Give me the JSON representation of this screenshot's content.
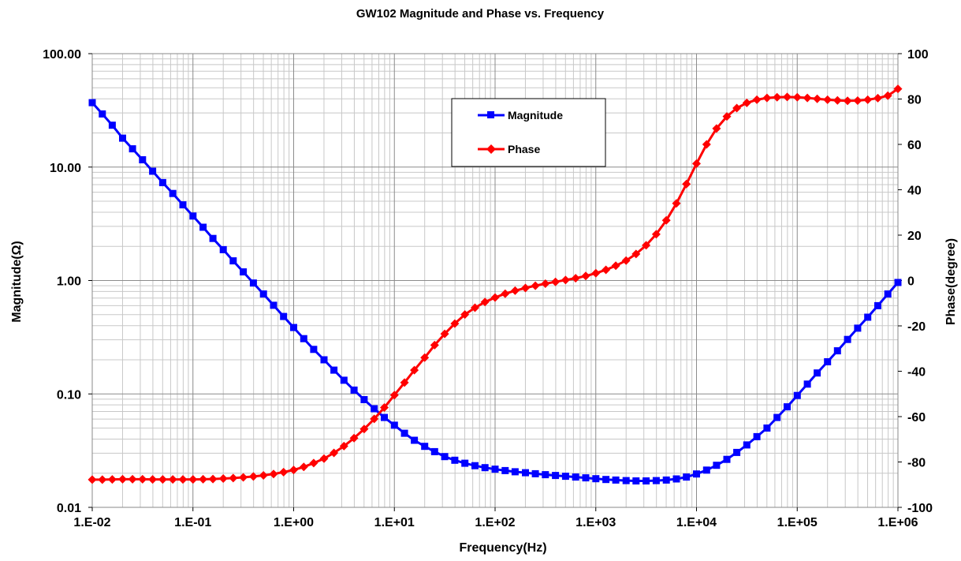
{
  "chart_data": {
    "type": "line",
    "title": "GW102 Magnitude and Phase vs. Frequency",
    "xlabel": "Frequency(Hz)",
    "ylabel_left": "Magnitude(Ω)",
    "ylabel_right": "Phase(degree)",
    "x_scale": "log",
    "y_left_scale": "log",
    "xlim": [
      0.01,
      1000000
    ],
    "ylim_left": [
      0.01,
      100
    ],
    "ylim_right": [
      -100,
      100
    ],
    "x_tick_labels": [
      "1.E-02",
      "1.E-01",
      "1.E+00",
      "1.E+01",
      "1.E+02",
      "1.E+03",
      "1.E+04",
      "1.E+05",
      "1.E+06"
    ],
    "y_left_tick_labels": [
      "0.01",
      "0.10",
      "1.00",
      "10.00",
      "100.00"
    ],
    "y_right_tick_labels": [
      "-100",
      "-80",
      "-60",
      "-40",
      "-20",
      "0",
      "20",
      "40",
      "60",
      "80",
      "100"
    ],
    "grid": true,
    "legend_position": "top-center",
    "x": [
      0.01,
      0.0126,
      0.0158,
      0.02,
      0.0251,
      0.0316,
      0.0398,
      0.0501,
      0.0631,
      0.0794,
      0.1,
      0.126,
      0.158,
      0.2,
      0.251,
      0.316,
      0.398,
      0.501,
      0.631,
      0.794,
      1,
      1.26,
      1.58,
      2,
      2.51,
      3.16,
      3.98,
      5.01,
      6.31,
      7.94,
      10,
      12.6,
      15.8,
      20,
      25.1,
      31.6,
      39.8,
      50.1,
      63.1,
      79.4,
      100,
      126,
      158,
      200,
      251,
      316,
      398,
      501,
      631,
      794,
      1000,
      1260,
      1580,
      2000,
      2510,
      3160,
      3980,
      5010,
      6310,
      7940,
      10000,
      12600,
      15800,
      20000,
      25100,
      31600,
      39800,
      50100,
      63100,
      79400,
      100000,
      126000,
      158000,
      200000,
      251000,
      316000,
      398000,
      501000,
      631000,
      794000,
      1000000
    ],
    "series": [
      {
        "name": "Magnitude",
        "axis": "left",
        "color": "#0000ff",
        "marker": "square",
        "values": [
          37,
          29.4,
          23.4,
          18,
          14.5,
          11.6,
          9.2,
          7.3,
          5.85,
          4.65,
          3.7,
          2.95,
          2.35,
          1.87,
          1.49,
          1.19,
          0.95,
          0.76,
          0.605,
          0.482,
          0.385,
          0.307,
          0.247,
          0.2,
          0.162,
          0.132,
          0.108,
          0.089,
          0.074,
          0.062,
          0.053,
          0.045,
          0.039,
          0.0345,
          0.031,
          0.028,
          0.026,
          0.0245,
          0.0233,
          0.0224,
          0.0217,
          0.0211,
          0.0206,
          0.0202,
          0.0198,
          0.0194,
          0.0191,
          0.0188,
          0.0185,
          0.0182,
          0.0179,
          0.0176,
          0.0174,
          0.0172,
          0.0171,
          0.0171,
          0.0172,
          0.0174,
          0.0178,
          0.0185,
          0.0197,
          0.0213,
          0.0235,
          0.0265,
          0.0305,
          0.0355,
          0.042,
          0.05,
          0.062,
          0.077,
          0.097,
          0.122,
          0.153,
          0.192,
          0.24,
          0.302,
          0.38,
          0.475,
          0.6,
          0.76,
          0.96
        ]
      },
      {
        "name": "Phase",
        "axis": "right",
        "color": "#ff0000",
        "marker": "diamond",
        "values": [
          -87.8,
          -87.8,
          -87.7,
          -87.6,
          -87.6,
          -87.6,
          -87.7,
          -87.7,
          -87.7,
          -87.7,
          -87.7,
          -87.6,
          -87.5,
          -87.3,
          -87.1,
          -86.8,
          -86.4,
          -85.9,
          -85.3,
          -84.5,
          -83.5,
          -82.2,
          -80.5,
          -78.5,
          -76,
          -73,
          -69.5,
          -65.5,
          -61,
          -56,
          -50.5,
          -45,
          -39.5,
          -34,
          -28.5,
          -23.5,
          -19,
          -15,
          -12,
          -9.5,
          -7.5,
          -5.8,
          -4.5,
          -3.3,
          -2.3,
          -1.4,
          -0.6,
          0.2,
          1,
          2,
          3.2,
          4.7,
          6.5,
          8.8,
          11.7,
          15.5,
          20.4,
          26.5,
          34,
          42.5,
          51.5,
          60,
          67,
          72.3,
          76,
          78.3,
          79.7,
          80.5,
          80.8,
          80.9,
          80.8,
          80.5,
          80.1,
          79.7,
          79.4,
          79.2,
          79.3,
          79.7,
          80.4,
          81.5,
          84.5
        ]
      }
    ]
  }
}
